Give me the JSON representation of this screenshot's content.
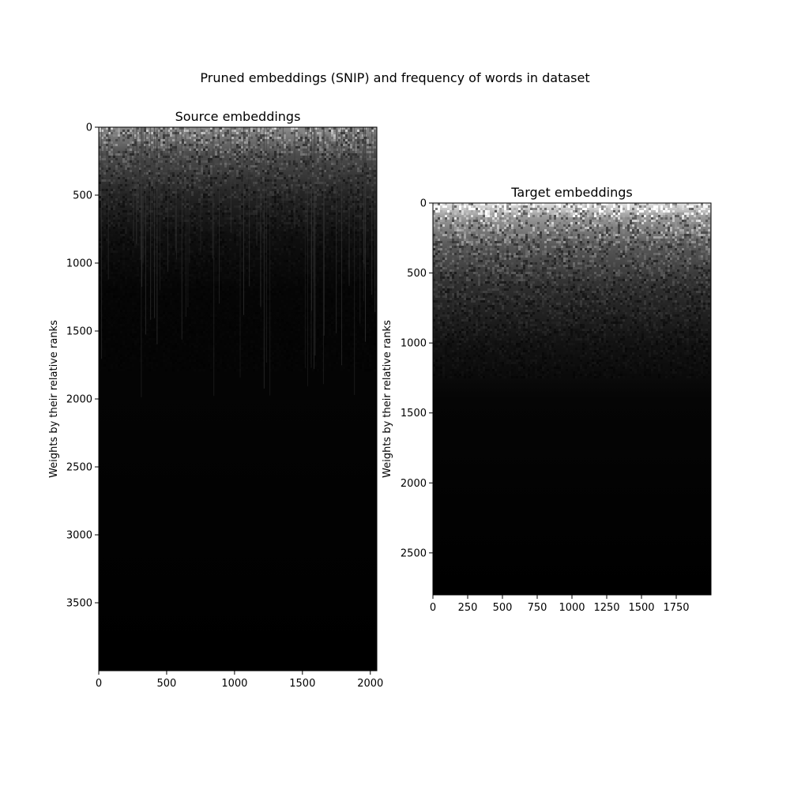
{
  "figure": {
    "suptitle": "Pruned embeddings (SNIP) and frequency of words in dataset",
    "background": "#ffffff"
  },
  "chart_data": [
    {
      "type": "heatmap",
      "id": "source",
      "title": "Source embeddings",
      "xlabel": "",
      "ylabel": "Weights by their relative ranks",
      "xlim": [
        0,
        2048
      ],
      "ylim": [
        4000,
        0
      ],
      "xticks": [
        0,
        500,
        1000,
        1500,
        2000
      ],
      "yticks": [
        0,
        500,
        1000,
        1500,
        2000,
        2500,
        3000,
        3500
      ],
      "colormap": "gray",
      "description_of_values": "Bright (unpruned) near the top rows fading to black (pruned) below ~1000",
      "fade_profile": [
        {
          "y": 0,
          "intensity": 0.55
        },
        {
          "y": 200,
          "intensity": 0.3
        },
        {
          "y": 500,
          "intensity": 0.14
        },
        {
          "y": 800,
          "intensity": 0.06
        },
        {
          "y": 1200,
          "intensity": 0.02
        },
        {
          "y": 4000,
          "intensity": 0.0
        }
      ]
    },
    {
      "type": "heatmap",
      "id": "target",
      "title": "Target embeddings",
      "xlabel": "",
      "ylabel": "Weights by their relative ranks",
      "xlim": [
        0,
        2000
      ],
      "ylim": [
        2800,
        0
      ],
      "xticks": [
        0,
        250,
        500,
        750,
        1000,
        1250,
        1500,
        1750
      ],
      "yticks": [
        0,
        500,
        1000,
        1500,
        2000,
        2500
      ],
      "colormap": "gray",
      "description_of_values": "Bright near the top rows fading to black below ~1300",
      "fade_profile": [
        {
          "y": 0,
          "intensity": 0.9
        },
        {
          "y": 100,
          "intensity": 0.6
        },
        {
          "y": 300,
          "intensity": 0.35
        },
        {
          "y": 600,
          "intensity": 0.18
        },
        {
          "y": 1000,
          "intensity": 0.07
        },
        {
          "y": 1400,
          "intensity": 0.02
        },
        {
          "y": 2800,
          "intensity": 0.0
        }
      ]
    }
  ]
}
